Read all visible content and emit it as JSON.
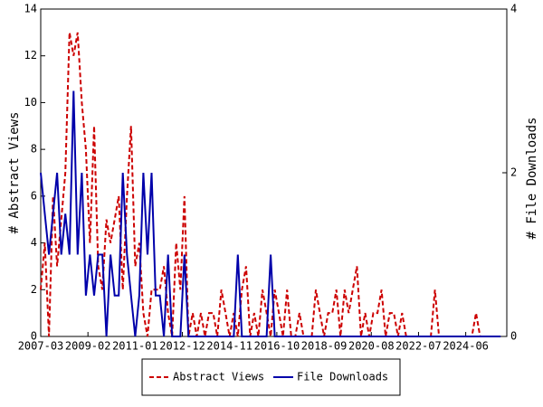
{
  "chart_data": {
    "type": "line",
    "x": [
      "2007-03",
      "2007-05",
      "2007-07",
      "2007-09",
      "2007-11",
      "2008-01",
      "2008-03",
      "2008-05",
      "2008-07",
      "2008-09",
      "2008-11",
      "2009-01",
      "2009-03",
      "2009-05",
      "2009-07",
      "2009-09",
      "2009-11",
      "2010-01",
      "2010-03",
      "2010-05",
      "2010-07",
      "2010-09",
      "2010-11",
      "2011-01",
      "2011-03",
      "2011-05",
      "2011-07",
      "2011-09",
      "2011-11",
      "2012-01",
      "2012-03",
      "2012-05",
      "2012-07",
      "2012-09",
      "2012-11",
      "2013-01",
      "2013-03",
      "2013-05",
      "2013-07",
      "2013-09",
      "2013-11",
      "2014-01",
      "2014-03",
      "2014-05",
      "2014-07",
      "2014-09",
      "2014-11",
      "2015-01",
      "2015-03",
      "2015-05",
      "2015-07",
      "2015-09",
      "2015-11",
      "2016-01",
      "2016-03",
      "2016-05",
      "2016-07",
      "2016-09",
      "2016-11",
      "2017-01",
      "2017-03",
      "2017-05",
      "2017-07",
      "2017-09",
      "2017-11",
      "2018-01",
      "2018-03",
      "2018-05",
      "2018-07",
      "2018-09",
      "2018-11",
      "2019-01",
      "2019-03",
      "2019-05",
      "2019-07",
      "2019-09",
      "2019-11",
      "2020-01",
      "2020-03",
      "2020-05",
      "2020-07",
      "2020-09",
      "2020-11",
      "2021-01",
      "2021-03",
      "2021-05",
      "2021-07",
      "2021-09",
      "2021-11",
      "2022-01",
      "2022-03",
      "2022-05",
      "2022-07",
      "2022-09",
      "2022-11",
      "2023-01",
      "2023-03",
      "2023-05",
      "2023-07",
      "2023-09",
      "2023-11",
      "2024-01",
      "2024-03",
      "2024-05",
      "2024-07",
      "2024-09",
      "2024-11",
      "2025-01",
      "2025-03",
      "2025-05",
      "2025-07",
      "2025-09",
      "2025-11"
    ],
    "series": [
      {
        "name": "Abstract Views",
        "color": "#cc0000",
        "dash": true,
        "values": [
          2,
          4,
          0,
          6,
          3,
          5,
          7,
          13,
          12,
          13,
          10,
          8,
          4,
          9,
          3,
          2,
          5,
          4,
          5,
          6,
          2,
          6,
          9,
          3,
          4,
          1,
          0,
          2,
          2,
          2,
          3,
          1,
          0,
          4,
          2,
          6,
          0,
          1,
          0,
          1,
          0,
          1,
          1,
          0,
          2,
          1,
          0,
          1,
          0,
          2,
          3,
          0,
          1,
          0,
          2,
          1,
          0,
          2,
          1,
          0,
          2,
          0,
          0,
          1,
          0,
          0,
          0,
          2,
          1,
          0,
          1,
          1,
          2,
          0,
          2,
          1,
          2,
          3,
          0,
          1,
          0,
          1,
          1,
          2,
          0,
          1,
          1,
          0,
          1,
          0,
          0,
          0,
          0,
          0,
          0,
          0,
          2,
          0,
          0,
          0,
          0,
          0,
          0,
          0,
          0,
          0,
          1,
          0,
          0,
          0,
          0,
          0,
          0
        ]
      },
      {
        "name": "File Downloads",
        "color": "#0000aa",
        "axis": "y2",
        "values": [
          2,
          1.5,
          1,
          1.5,
          2,
          1,
          1.5,
          1,
          3,
          1,
          2,
          0.5,
          1,
          0.5,
          1,
          1,
          0,
          1,
          0.5,
          0.5,
          2,
          1,
          0.5,
          0,
          0.5,
          2,
          1,
          2,
          0.5,
          0.5,
          0,
          1,
          0,
          0,
          0,
          1,
          0,
          0,
          0,
          0,
          0,
          0,
          0,
          0,
          0,
          0,
          0,
          0,
          1,
          0,
          0,
          0,
          0,
          0,
          0,
          0,
          1,
          0,
          0,
          0,
          0,
          0,
          0,
          0,
          0,
          0,
          0,
          0,
          0,
          0,
          0,
          0,
          0,
          0,
          0,
          0,
          0,
          0,
          0,
          0,
          0,
          0,
          0,
          0,
          0,
          0,
          0,
          0,
          0,
          0,
          0,
          0,
          0,
          0,
          0,
          0,
          0,
          0,
          0,
          0,
          0,
          0,
          0,
          0,
          0,
          0,
          0,
          0,
          0,
          0,
          0,
          0,
          0
        ]
      }
    ],
    "xlim": [
      "2007-03",
      "2026-02"
    ],
    "xticks": [
      "2007-03",
      "2009-02",
      "2011-01",
      "2012-12",
      "2014-11",
      "2016-10",
      "2018-09",
      "2020-08",
      "2022-07",
      "2024-06"
    ],
    "ylim": [
      0,
      14
    ],
    "yticks": [
      0,
      2,
      4,
      6,
      8,
      10,
      12,
      14
    ],
    "y2lim": [
      0,
      4
    ],
    "y2ticks": [
      0,
      2,
      4
    ],
    "ylabel": "# Abstract Views",
    "y2label": "# File Downloads",
    "grid": false,
    "legend": "bottom"
  }
}
